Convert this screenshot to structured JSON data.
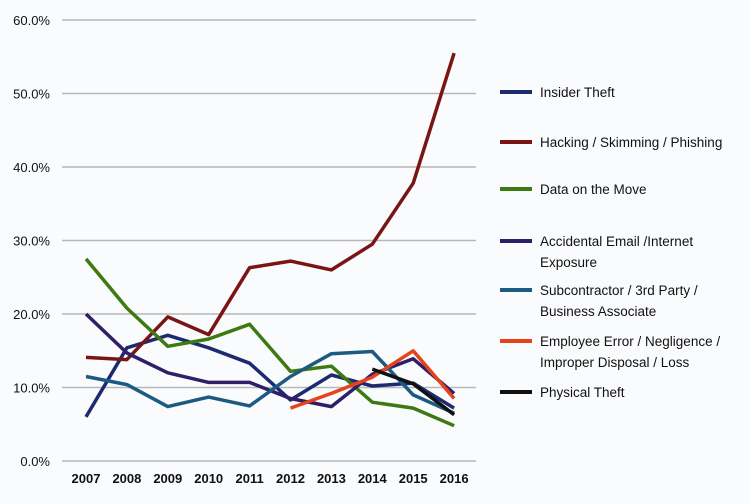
{
  "chart_data": {
    "type": "line",
    "categories": [
      "2007",
      "2008",
      "2009",
      "2010",
      "2011",
      "2012",
      "2013",
      "2014",
      "2015",
      "2016"
    ],
    "ylim": [
      0,
      60
    ],
    "yticks": [
      "0.0%",
      "10.0%",
      "20.0%",
      "30.0%",
      "40.0%",
      "50.0%",
      "60.0%"
    ],
    "grid": true,
    "legend_position": "right",
    "series": [
      {
        "name": "Insider Theft",
        "color": "#1c2a72",
        "values": [
          6.0,
          15.4,
          17.1,
          15.4,
          13.3,
          8.3,
          11.7,
          10.2,
          10.6,
          7.2
        ]
      },
      {
        "name": "Hacking / Skimming / Phishing",
        "color": "#7a1515",
        "values": [
          14.1,
          13.8,
          19.6,
          17.2,
          26.3,
          27.2,
          26.0,
          29.5,
          37.8,
          55.5
        ]
      },
      {
        "name": "Data on the Move",
        "color": "#3d7a12",
        "values": [
          27.5,
          20.8,
          15.6,
          16.6,
          18.6,
          12.2,
          12.9,
          8.0,
          7.2,
          4.8
        ]
      },
      {
        "name": "Accidental Email /Internet Exposure",
        "lines": [
          "Accidental Email /Internet",
          "Exposure"
        ],
        "color": "#2f1f66",
        "values": [
          20.0,
          14.7,
          12.0,
          10.7,
          10.7,
          8.5,
          7.4,
          11.8,
          13.9,
          9.2
        ]
      },
      {
        "name": "Subcontractor / 3rd Party / Business Associate",
        "lines": [
          "Subcontractor / 3rd Party /",
          "Business Associate"
        ],
        "color": "#1d5a82",
        "values": [
          11.5,
          10.4,
          7.4,
          8.7,
          7.5,
          11.5,
          14.6,
          14.9,
          9.0,
          6.5
        ]
      },
      {
        "name": "Employee Error / Negligence / Improper Disposal / Loss",
        "lines": [
          "Employee Error / Negligence /",
          "Improper Disposal / Loss"
        ],
        "color": "#e6431c",
        "values": [
          null,
          null,
          null,
          null,
          null,
          7.2,
          9.2,
          11.4,
          15.0,
          8.5
        ]
      },
      {
        "name": "Physical Theft",
        "color": "#111111",
        "values": [
          null,
          null,
          null,
          null,
          null,
          null,
          null,
          12.5,
          10.5,
          6.3
        ]
      }
    ]
  }
}
